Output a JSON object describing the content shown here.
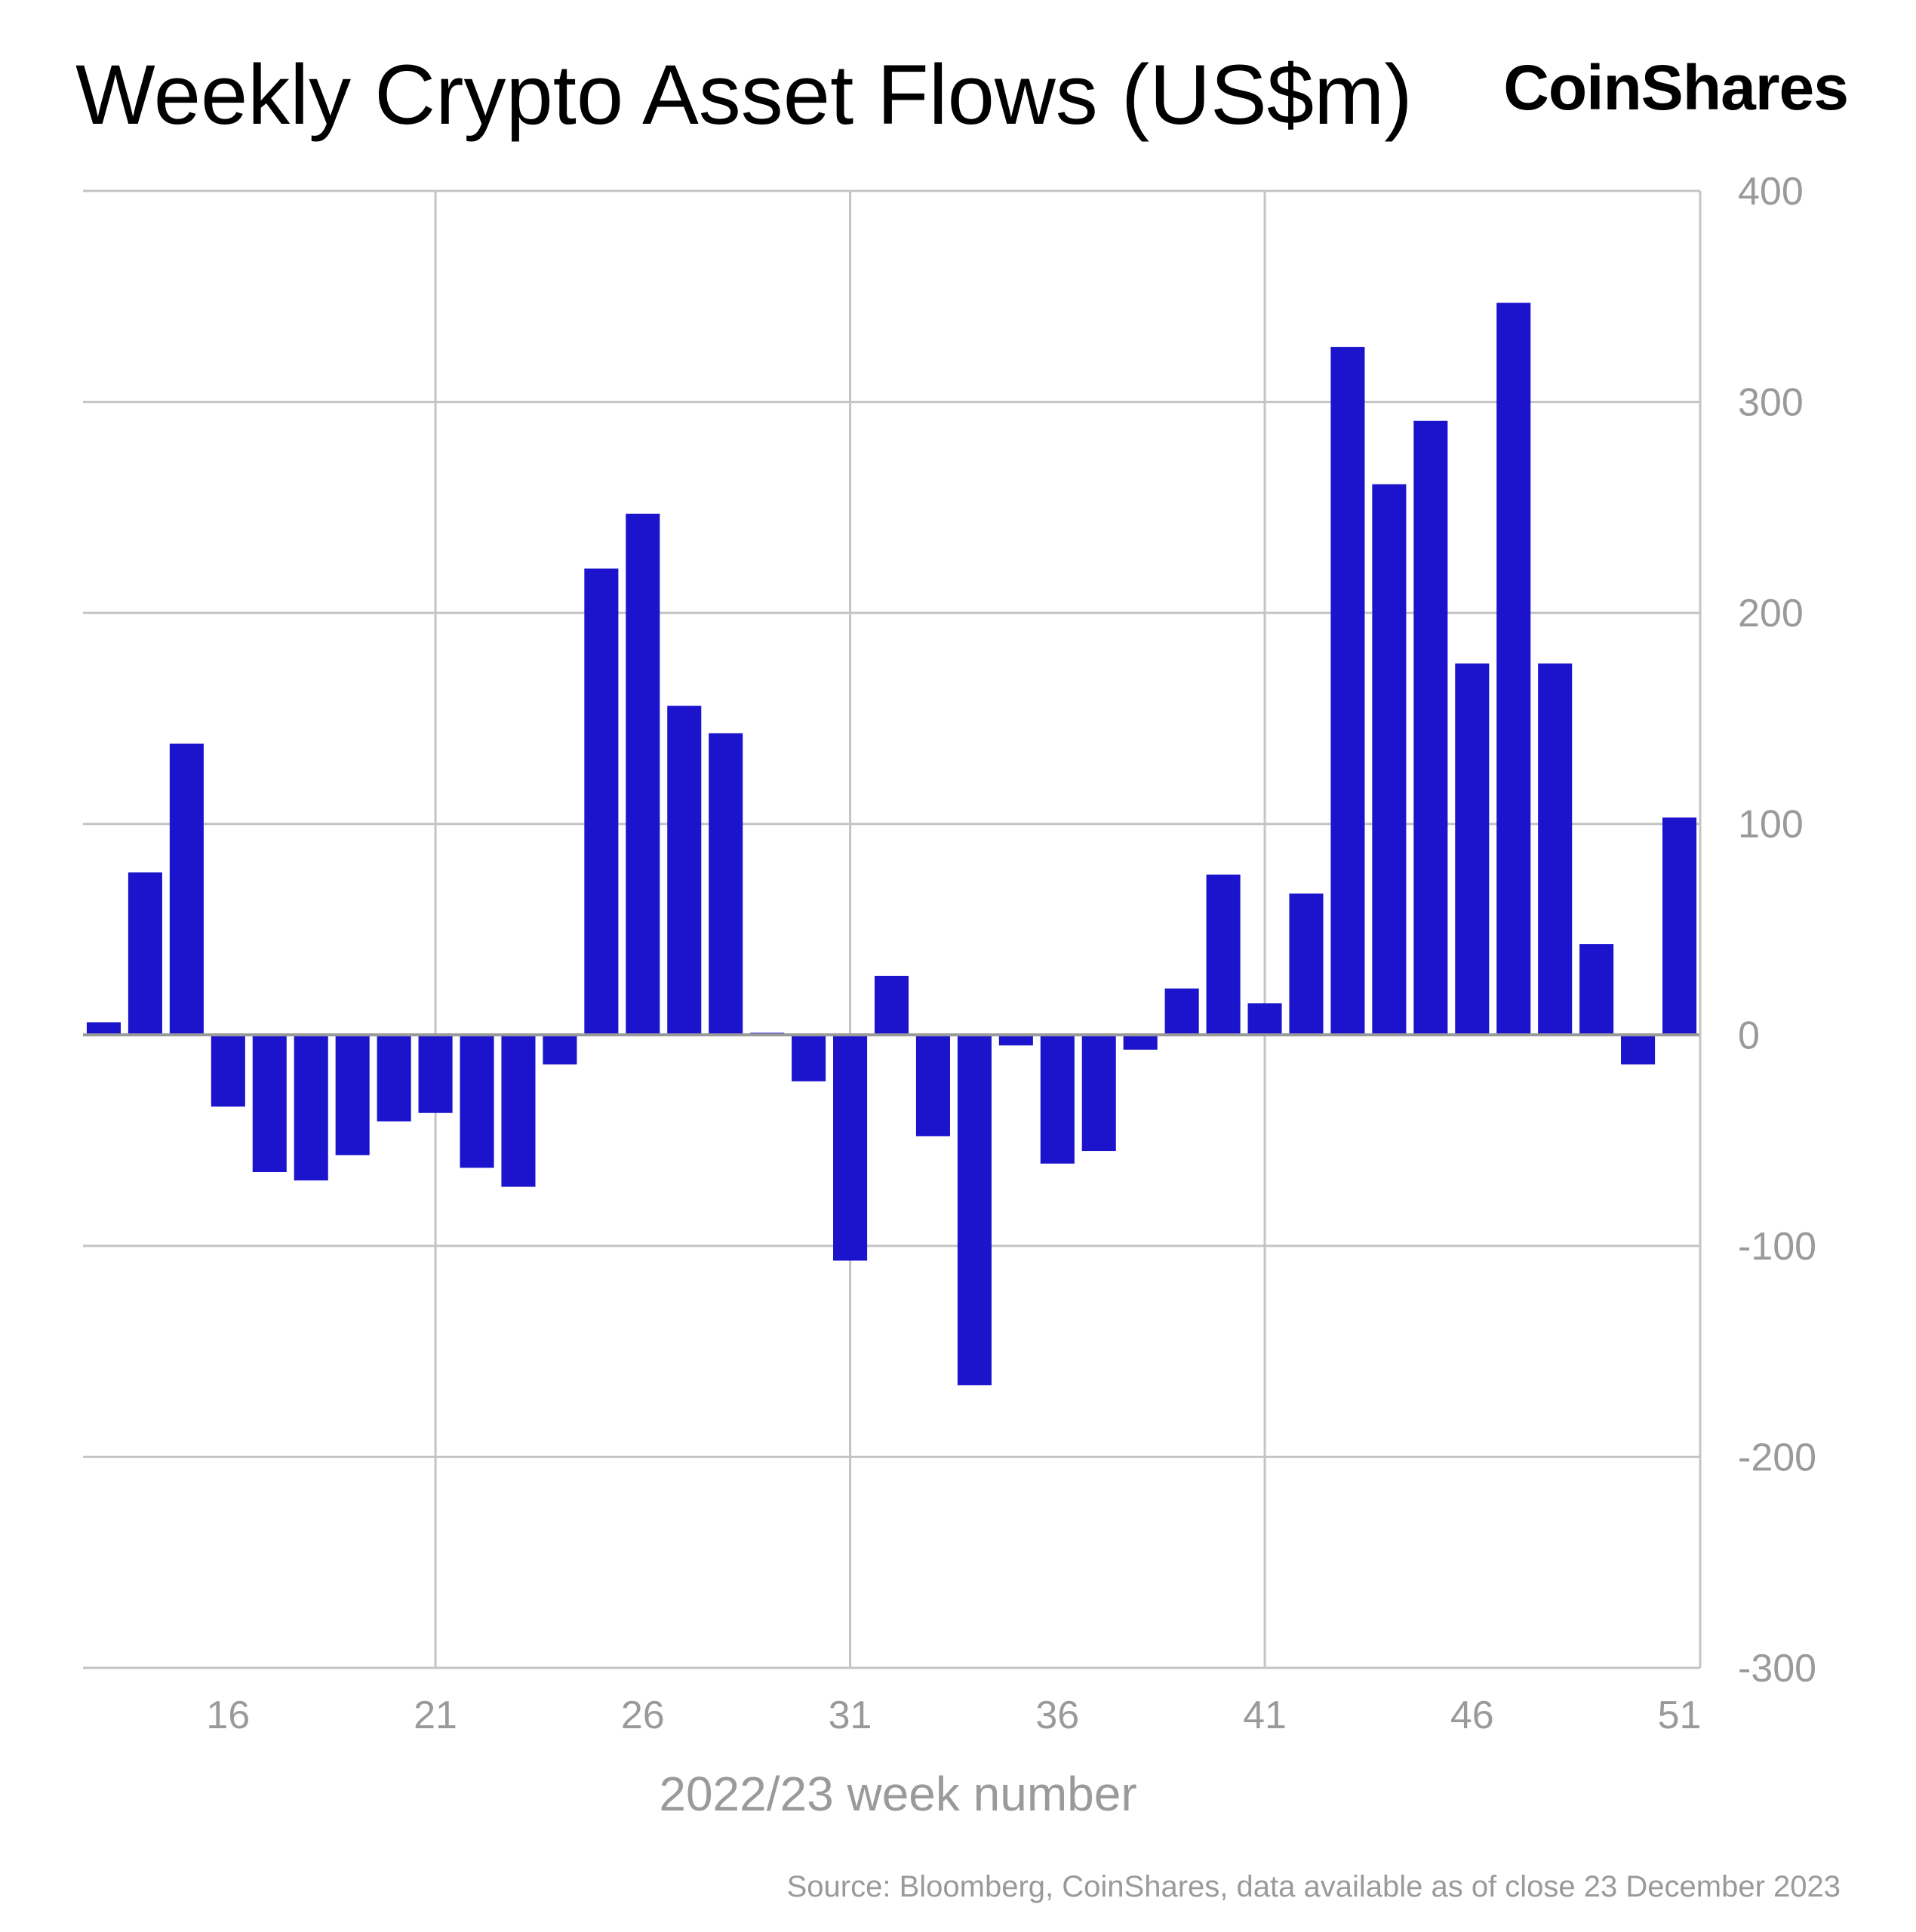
{
  "header": {
    "title": "Weekly Crypto Asset Flows (US$m)",
    "logo_text": "CoinShares"
  },
  "footer": {
    "source": "Source: Bloomberg, CoinShares, data available as of close 23 December 2023"
  },
  "colors": {
    "bar": "#1c14cc",
    "grid": "#c4c4c4",
    "zero_line": "#9a9a9a",
    "tick_text": "#9a9a9a"
  },
  "chart_data": {
    "type": "bar",
    "title": "Weekly Crypto Asset Flows (US$m)",
    "xlabel": "2022/23 week number",
    "ylabel": "",
    "y_axis_side": "right",
    "ylim": [
      -300,
      400
    ],
    "y_ticks": [
      400,
      300,
      200,
      100,
      0,
      -100,
      -200,
      -300
    ],
    "x_tick_labels": [
      "16",
      "21",
      "26",
      "31",
      "36",
      "41",
      "46",
      "51"
    ],
    "grid": true,
    "categories": [
      "13",
      "14",
      "15",
      "16",
      "17",
      "18",
      "19",
      "20",
      "21",
      "22",
      "23",
      "24",
      "25",
      "26",
      "27",
      "28",
      "29",
      "30",
      "31",
      "32",
      "33",
      "34",
      "35",
      "36",
      "37",
      "38",
      "39",
      "40",
      "41",
      "42",
      "43",
      "44",
      "45",
      "46",
      "47",
      "48",
      "49",
      "50",
      "51"
    ],
    "values": [
      6,
      77,
      138,
      -34,
      -65,
      -69,
      -57,
      -41,
      -37,
      -63,
      -72,
      -14,
      221,
      247,
      156,
      143,
      1,
      -22,
      -107,
      28,
      -48,
      -166,
      -5,
      -61,
      -55,
      -7,
      22,
      76,
      15,
      67,
      326,
      261,
      291,
      176,
      347,
      176,
      43,
      -14,
      103
    ]
  }
}
